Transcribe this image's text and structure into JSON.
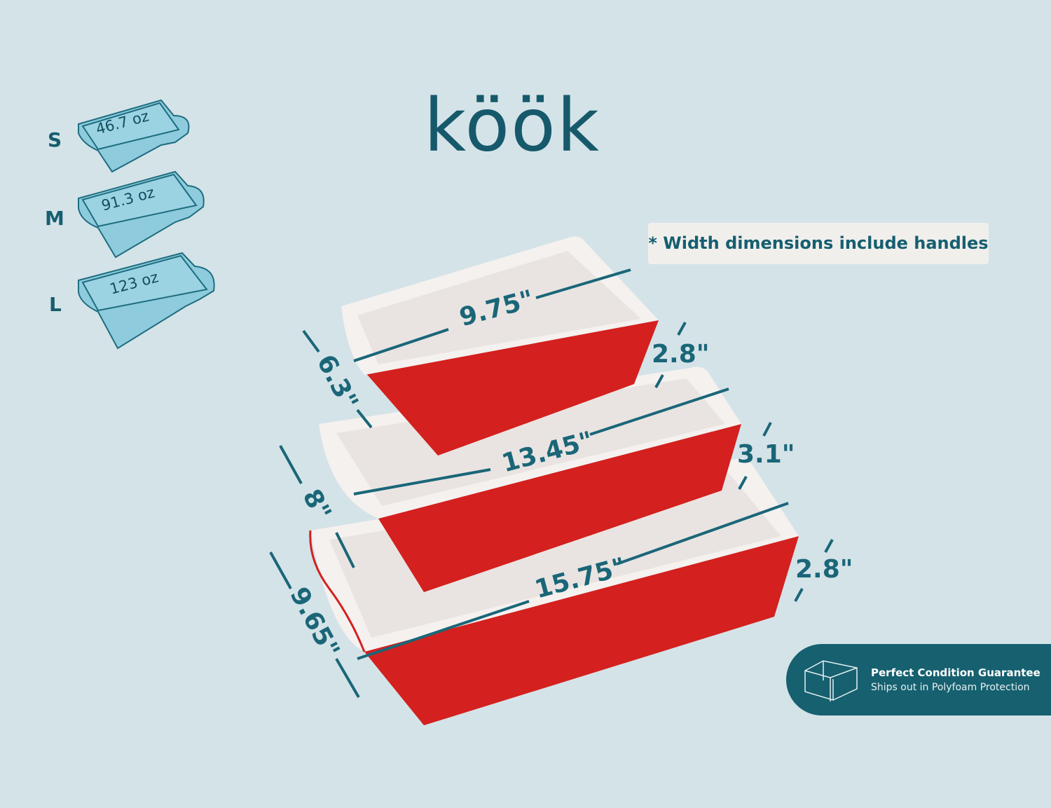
{
  "brand": {
    "logo": "köök"
  },
  "colors": {
    "background": "#d4e3e8",
    "teal": "#165e70",
    "dish_red": "#d4201e",
    "dish_white": "#f4f1ef",
    "icon_fill": "#8ecbdc"
  },
  "sizes": [
    {
      "label": "S",
      "capacity": "46.7 oz"
    },
    {
      "label": "M",
      "capacity": "91.3 oz"
    },
    {
      "label": "L",
      "capacity": "123 oz"
    }
  ],
  "note": "* Width dimensions include handles",
  "dimensions": {
    "small": {
      "width": "9.75\"",
      "depth": "6.3\"",
      "height": "2.8\""
    },
    "medium": {
      "width": "13.45\"",
      "depth": "8\"",
      "height": "3.1\""
    },
    "large": {
      "width": "15.75\"",
      "depth": "9.65\"",
      "height": "2.8\""
    }
  },
  "badge": {
    "icon": "box-icon",
    "title": "Perfect Condition Guarantee",
    "subtitle": "Ships out in Polyfoam Protection"
  }
}
